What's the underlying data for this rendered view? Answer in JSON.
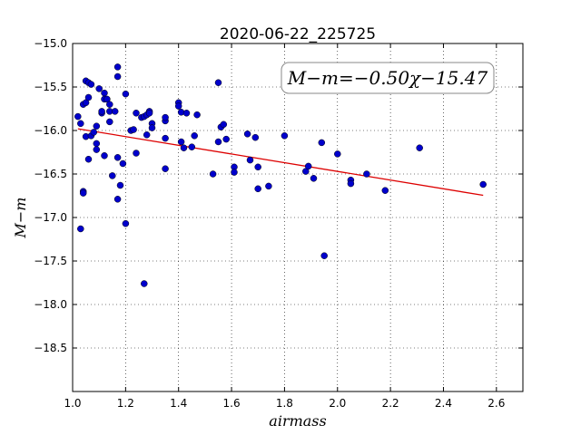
{
  "chart_data": {
    "type": "scatter",
    "title": "2020-06-22_225725",
    "xlabel": "airmass",
    "ylabel": "M−m",
    "xlim": [
      1.0,
      2.7
    ],
    "ylim": [
      -15.0,
      -19.0
    ],
    "y_inverted": true,
    "grid": true,
    "x_ticks": [
      "1.0",
      "1.2",
      "1.4",
      "1.6",
      "1.8",
      "2.0",
      "2.2",
      "2.4",
      "2.6"
    ],
    "y_ticks": [
      "−15.0",
      "−15.5",
      "−16.0",
      "−16.5",
      "−17.0",
      "−17.5",
      "−18.0",
      "−18.5"
    ],
    "annotation": "M−m=−0.50χ−15.47",
    "fit": {
      "slope": -0.5,
      "intercept": -15.47,
      "x_range": [
        1.02,
        2.55
      ]
    },
    "colors": {
      "points": "#0000cc",
      "fit": "#dd0000"
    },
    "points": [
      [
        1.02,
        -15.84
      ],
      [
        1.03,
        -15.92
      ],
      [
        1.03,
        -17.13
      ],
      [
        1.04,
        -16.7
      ],
      [
        1.04,
        -16.72
      ],
      [
        1.04,
        -15.7
      ],
      [
        1.05,
        -15.68
      ],
      [
        1.05,
        -16.07
      ],
      [
        1.05,
        -15.43
      ],
      [
        1.06,
        -15.45
      ],
      [
        1.06,
        -15.62
      ],
      [
        1.06,
        -16.33
      ],
      [
        1.07,
        -15.47
      ],
      [
        1.07,
        -16.06
      ],
      [
        1.08,
        -16.02
      ],
      [
        1.09,
        -15.95
      ],
      [
        1.09,
        -16.15
      ],
      [
        1.09,
        -16.22
      ],
      [
        1.1,
        -15.52
      ],
      [
        1.11,
        -15.8
      ],
      [
        1.11,
        -15.78
      ],
      [
        1.12,
        -15.57
      ],
      [
        1.12,
        -15.64
      ],
      [
        1.12,
        -16.29
      ],
      [
        1.13,
        -15.64
      ],
      [
        1.14,
        -15.7
      ],
      [
        1.14,
        -15.78
      ],
      [
        1.14,
        -15.9
      ],
      [
        1.15,
        -16.52
      ],
      [
        1.16,
        -15.78
      ],
      [
        1.17,
        -15.27
      ],
      [
        1.17,
        -15.38
      ],
      [
        1.17,
        -16.31
      ],
      [
        1.17,
        -16.79
      ],
      [
        1.18,
        -16.63
      ],
      [
        1.19,
        -16.38
      ],
      [
        1.2,
        -15.58
      ],
      [
        1.2,
        -17.07
      ],
      [
        1.22,
        -16.0
      ],
      [
        1.23,
        -15.99
      ],
      [
        1.24,
        -15.8
      ],
      [
        1.24,
        -16.26
      ],
      [
        1.26,
        -15.85
      ],
      [
        1.27,
        -15.84
      ],
      [
        1.27,
        -17.76
      ],
      [
        1.28,
        -15.82
      ],
      [
        1.28,
        -16.05
      ],
      [
        1.29,
        -15.78
      ],
      [
        1.29,
        -15.8
      ],
      [
        1.3,
        -15.92
      ],
      [
        1.3,
        -15.97
      ],
      [
        1.35,
        -16.09
      ],
      [
        1.35,
        -16.44
      ],
      [
        1.35,
        -15.89
      ],
      [
        1.35,
        -15.85
      ],
      [
        1.4,
        -15.68
      ],
      [
        1.4,
        -15.72
      ],
      [
        1.41,
        -15.79
      ],
      [
        1.41,
        -16.13
      ],
      [
        1.42,
        -16.2
      ],
      [
        1.43,
        -15.8
      ],
      [
        1.45,
        -16.19
      ],
      [
        1.46,
        -16.06
      ],
      [
        1.47,
        -15.82
      ],
      [
        1.53,
        -16.5
      ],
      [
        1.55,
        -15.45
      ],
      [
        1.55,
        -16.13
      ],
      [
        1.56,
        -15.96
      ],
      [
        1.57,
        -15.93
      ],
      [
        1.58,
        -16.1
      ],
      [
        1.61,
        -16.42
      ],
      [
        1.61,
        -16.48
      ],
      [
        1.66,
        -16.04
      ],
      [
        1.67,
        -16.34
      ],
      [
        1.69,
        -16.08
      ],
      [
        1.7,
        -16.67
      ],
      [
        1.7,
        -16.42
      ],
      [
        1.74,
        -16.64
      ],
      [
        1.8,
        -16.06
      ],
      [
        1.88,
        -16.47
      ],
      [
        1.89,
        -16.41
      ],
      [
        1.91,
        -16.55
      ],
      [
        1.94,
        -16.14
      ],
      [
        1.95,
        -17.44
      ],
      [
        2.0,
        -16.27
      ],
      [
        2.05,
        -16.57
      ],
      [
        2.05,
        -16.61
      ],
      [
        2.11,
        -16.5
      ],
      [
        2.18,
        -16.69
      ],
      [
        2.31,
        -16.2
      ],
      [
        2.55,
        -16.62
      ]
    ]
  }
}
